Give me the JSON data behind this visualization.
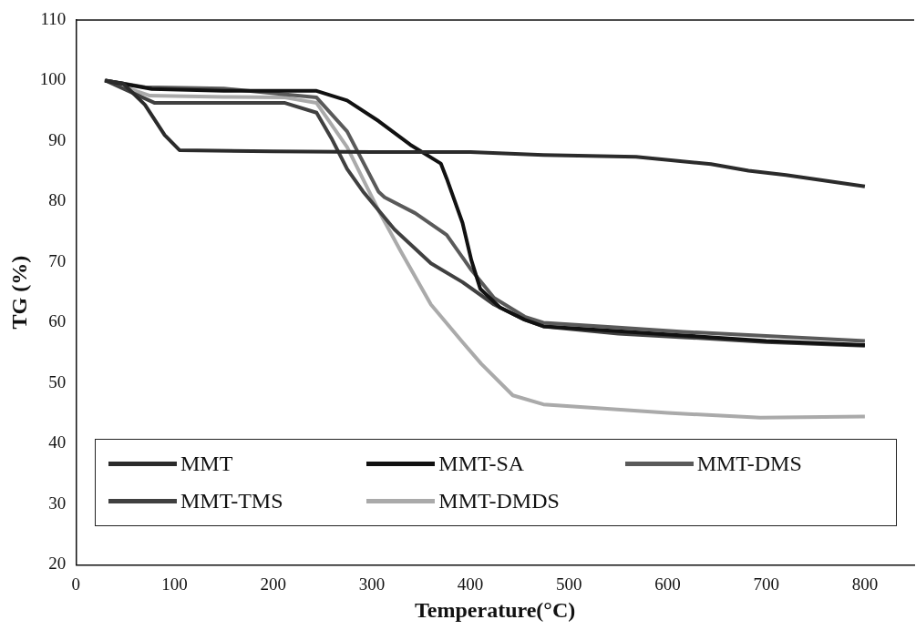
{
  "chart_data": {
    "type": "line",
    "xlabel": "Temperature(°C)",
    "ylabel": "TG (%)",
    "xlim": [
      0,
      850
    ],
    "xticks": [
      0,
      100,
      200,
      300,
      400,
      500,
      600,
      700,
      800
    ],
    "ylim": [
      20,
      110
    ],
    "yticks": [
      20,
      30,
      40,
      50,
      60,
      70,
      80,
      90,
      100,
      110
    ],
    "grid": false,
    "legend": "bottom",
    "marker": "none",
    "line_style": "solid",
    "series": [
      {
        "name": "MMT",
        "color": "#2b2b2b",
        "x": [
          29,
          48,
          70,
          90,
          105,
          200,
          300,
          400,
          474,
          568,
          644,
          682,
          720,
          800
        ],
        "values": [
          100,
          99.5,
          96,
          91,
          88.5,
          88.3,
          88.2,
          88.2,
          87.7,
          87.4,
          86.2,
          85.1,
          84.4,
          82.5
        ]
      },
      {
        "name": "MMT-SA",
        "color": "#111111",
        "x": [
          30,
          77,
          150,
          244,
          275,
          307,
          339,
          370,
          376,
          392,
          401,
          410,
          430,
          455,
          474,
          550,
          616,
          700,
          800
        ],
        "values": [
          100,
          98.6,
          98.3,
          98.3,
          96.7,
          93.3,
          89.4,
          86.3,
          83.8,
          76.5,
          70.3,
          65.6,
          62.5,
          60.5,
          59.4,
          58.6,
          57.9,
          57,
          56.3
        ]
      },
      {
        "name": "MMT-DMS",
        "color": "#5a5a5a",
        "x": [
          30,
          70,
          150,
          244,
          275,
          307,
          313,
          344,
          376,
          401,
          424,
          455,
          474,
          550,
          616,
          700,
          800
        ],
        "values": [
          100,
          98.9,
          98.7,
          97.2,
          91.6,
          81.6,
          80.7,
          78.1,
          74.5,
          68.7,
          64.1,
          61,
          60,
          59.2,
          58.5,
          57.8,
          57
        ]
      },
      {
        "name": "MMT-TMS",
        "color": "#404040",
        "x": [
          30,
          80,
          150,
          212,
          244,
          259,
          275,
          291,
          323,
          360,
          392,
          424,
          455,
          474,
          550,
          616,
          700,
          800
        ],
        "values": [
          100,
          96.3,
          96.3,
          96.3,
          94.7,
          90.5,
          85.4,
          81.7,
          75.4,
          69.8,
          66.7,
          63,
          60.5,
          59.4,
          58.2,
          57.6,
          56.8,
          56.2
        ]
      },
      {
        "name": "MMT-DMDS",
        "color": "#aaaaaa",
        "x": [
          30,
          75,
          150,
          212,
          244,
          275,
          307,
          329,
          360,
          392,
          411,
          443,
          474,
          600,
          694,
          800
        ],
        "values": [
          100,
          97.5,
          97.3,
          97.2,
          96.3,
          89,
          78.5,
          71.9,
          63,
          56.8,
          53.2,
          48,
          46.5,
          45.1,
          44.3,
          44.5
        ]
      }
    ]
  }
}
